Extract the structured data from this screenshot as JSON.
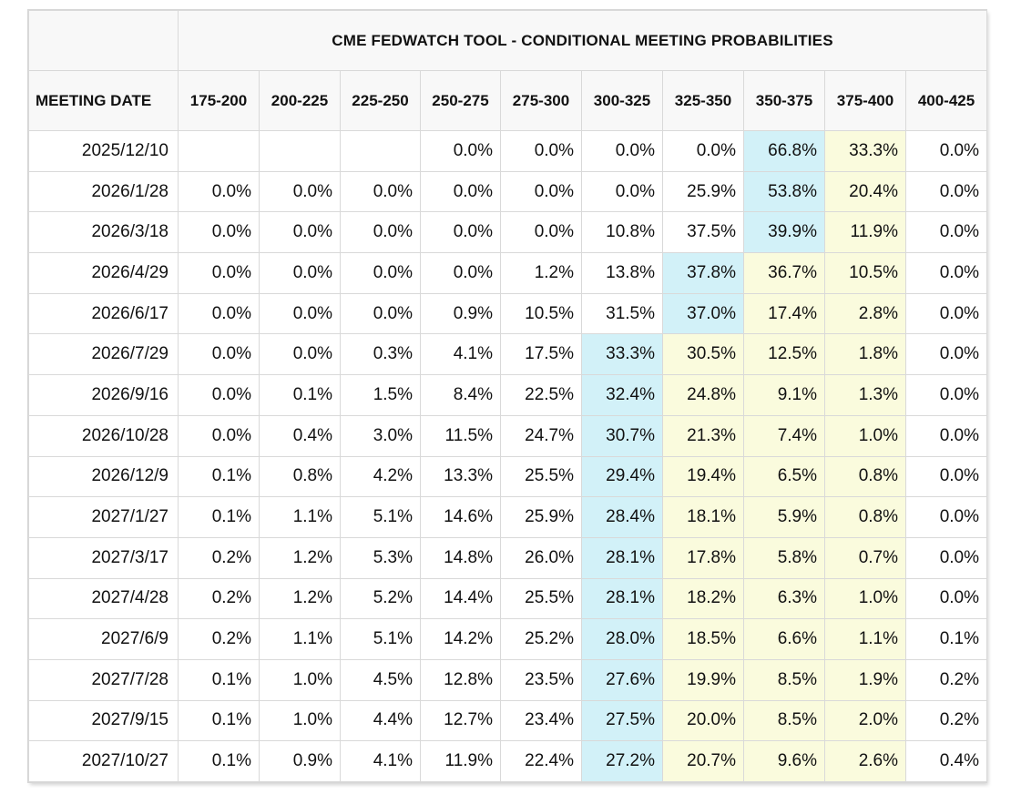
{
  "title": "CME FEDWATCH TOOL - CONDITIONAL MEETING PROBABILITIES",
  "columns": [
    "MEETING DATE",
    "175-200",
    "200-225",
    "225-250",
    "250-275",
    "275-300",
    "300-325",
    "325-350",
    "350-375",
    "375-400",
    "400-425"
  ],
  "colors": {
    "most_likely": "#d2f1f8",
    "above_current": "#fafbdd",
    "header_bg": "#f8f8f8"
  },
  "rows": [
    {
      "date": "2025/12/10",
      "values": [
        "",
        "",
        "",
        "0.0%",
        "0.0%",
        "0.0%",
        "0.0%",
        "66.8%",
        "33.3%",
        "0.0%"
      ]
    },
    {
      "date": "2026/1/28",
      "values": [
        "0.0%",
        "0.0%",
        "0.0%",
        "0.0%",
        "0.0%",
        "0.0%",
        "25.9%",
        "53.8%",
        "20.4%",
        "0.0%"
      ]
    },
    {
      "date": "2026/3/18",
      "values": [
        "0.0%",
        "0.0%",
        "0.0%",
        "0.0%",
        "0.0%",
        "10.8%",
        "37.5%",
        "39.9%",
        "11.9%",
        "0.0%"
      ]
    },
    {
      "date": "2026/4/29",
      "values": [
        "0.0%",
        "0.0%",
        "0.0%",
        "0.0%",
        "1.2%",
        "13.8%",
        "37.8%",
        "36.7%",
        "10.5%",
        "0.0%"
      ]
    },
    {
      "date": "2026/6/17",
      "values": [
        "0.0%",
        "0.0%",
        "0.0%",
        "0.9%",
        "10.5%",
        "31.5%",
        "37.0%",
        "17.4%",
        "2.8%",
        "0.0%"
      ]
    },
    {
      "date": "2026/7/29",
      "values": [
        "0.0%",
        "0.0%",
        "0.3%",
        "4.1%",
        "17.5%",
        "33.3%",
        "30.5%",
        "12.5%",
        "1.8%",
        "0.0%"
      ]
    },
    {
      "date": "2026/9/16",
      "values": [
        "0.0%",
        "0.1%",
        "1.5%",
        "8.4%",
        "22.5%",
        "32.4%",
        "24.8%",
        "9.1%",
        "1.3%",
        "0.0%"
      ]
    },
    {
      "date": "2026/10/28",
      "values": [
        "0.0%",
        "0.4%",
        "3.0%",
        "11.5%",
        "24.7%",
        "30.7%",
        "21.3%",
        "7.4%",
        "1.0%",
        "0.0%"
      ]
    },
    {
      "date": "2026/12/9",
      "values": [
        "0.1%",
        "0.8%",
        "4.2%",
        "13.3%",
        "25.5%",
        "29.4%",
        "19.4%",
        "6.5%",
        "0.8%",
        "0.0%"
      ]
    },
    {
      "date": "2027/1/27",
      "values": [
        "0.1%",
        "1.1%",
        "5.1%",
        "14.6%",
        "25.9%",
        "28.4%",
        "18.1%",
        "5.9%",
        "0.8%",
        "0.0%"
      ]
    },
    {
      "date": "2027/3/17",
      "values": [
        "0.2%",
        "1.2%",
        "5.3%",
        "14.8%",
        "26.0%",
        "28.1%",
        "17.8%",
        "5.8%",
        "0.7%",
        "0.0%"
      ]
    },
    {
      "date": "2027/4/28",
      "values": [
        "0.2%",
        "1.2%",
        "5.2%",
        "14.4%",
        "25.5%",
        "28.1%",
        "18.2%",
        "6.3%",
        "1.0%",
        "0.0%"
      ]
    },
    {
      "date": "2027/6/9",
      "values": [
        "0.2%",
        "1.1%",
        "5.1%",
        "14.2%",
        "25.2%",
        "28.0%",
        "18.5%",
        "6.6%",
        "1.1%",
        "0.1%"
      ]
    },
    {
      "date": "2027/7/28",
      "values": [
        "0.1%",
        "1.0%",
        "4.5%",
        "12.8%",
        "23.5%",
        "27.6%",
        "19.9%",
        "8.5%",
        "1.9%",
        "0.2%"
      ]
    },
    {
      "date": "2027/9/15",
      "values": [
        "0.1%",
        "1.0%",
        "4.4%",
        "12.7%",
        "23.4%",
        "27.5%",
        "20.0%",
        "8.5%",
        "2.0%",
        "0.2%"
      ]
    },
    {
      "date": "2027/10/27",
      "values": [
        "0.1%",
        "0.9%",
        "4.1%",
        "11.9%",
        "22.4%",
        "27.2%",
        "20.7%",
        "9.6%",
        "2.6%",
        "0.4%"
      ]
    }
  ],
  "highlight": {
    "most_likely": [
      [
        0,
        7
      ],
      [
        1,
        7
      ],
      [
        2,
        7
      ],
      [
        3,
        6
      ],
      [
        4,
        6
      ],
      [
        5,
        5
      ],
      [
        6,
        5
      ],
      [
        7,
        5
      ],
      [
        8,
        5
      ],
      [
        9,
        5
      ],
      [
        10,
        5
      ],
      [
        11,
        5
      ],
      [
        12,
        5
      ],
      [
        13,
        5
      ],
      [
        14,
        5
      ],
      [
        15,
        5
      ]
    ],
    "above_current": [
      [
        0,
        8
      ],
      [
        1,
        8
      ],
      [
        2,
        8
      ],
      [
        3,
        7
      ],
      [
        3,
        8
      ],
      [
        4,
        7
      ],
      [
        4,
        8
      ],
      [
        5,
        6
      ],
      [
        5,
        7
      ],
      [
        5,
        8
      ],
      [
        6,
        6
      ],
      [
        6,
        7
      ],
      [
        6,
        8
      ],
      [
        7,
        6
      ],
      [
        7,
        7
      ],
      [
        7,
        8
      ],
      [
        8,
        6
      ],
      [
        8,
        7
      ],
      [
        8,
        8
      ],
      [
        9,
        6
      ],
      [
        9,
        7
      ],
      [
        9,
        8
      ],
      [
        10,
        6
      ],
      [
        10,
        7
      ],
      [
        10,
        8
      ],
      [
        11,
        6
      ],
      [
        11,
        7
      ],
      [
        11,
        8
      ],
      [
        12,
        6
      ],
      [
        12,
        7
      ],
      [
        12,
        8
      ],
      [
        13,
        6
      ],
      [
        13,
        7
      ],
      [
        13,
        8
      ],
      [
        14,
        6
      ],
      [
        14,
        7
      ],
      [
        14,
        8
      ],
      [
        15,
        6
      ],
      [
        15,
        7
      ],
      [
        15,
        8
      ]
    ]
  }
}
